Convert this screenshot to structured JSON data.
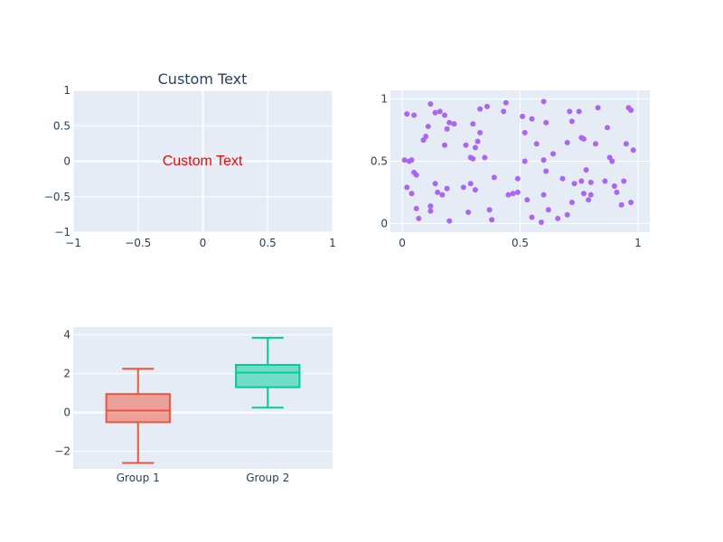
{
  "colors": {
    "plot_bg": "#e5ecf6",
    "grid": "#ffffff",
    "text": "#2a3f5f",
    "annotation": "#ff0000",
    "scatter": "#ab63fa",
    "box1": "#ef553b",
    "box2": "#00cc96"
  },
  "chart_data": [
    {
      "type": "table",
      "panel": "top-left",
      "title": "Custom Text",
      "xlim": [
        -1,
        1
      ],
      "ylim": [
        -1,
        1
      ],
      "x_ticks": [
        "−1",
        "−0.5",
        "0",
        "0.5",
        "1"
      ],
      "y_ticks": [
        "−1",
        "−0.5",
        "0",
        "0.5",
        "1"
      ],
      "annotation": {
        "text": "Custom Text",
        "x": 0,
        "y": 0
      }
    },
    {
      "type": "scatter",
      "panel": "top-right",
      "xlim": [
        -0.05,
        1.05
      ],
      "ylim": [
        -0.07,
        1.07
      ],
      "x_ticks": [
        "0",
        "0.5",
        "1"
      ],
      "y_ticks": [
        "0",
        "0.5",
        "1"
      ],
      "points": [
        [
          0.01,
          0.51
        ],
        [
          0.02,
          0.88
        ],
        [
          0.02,
          0.29
        ],
        [
          0.03,
          0.5
        ],
        [
          0.04,
          0.51
        ],
        [
          0.04,
          0.24
        ],
        [
          0.05,
          0.87
        ],
        [
          0.05,
          0.41
        ],
        [
          0.06,
          0.12
        ],
        [
          0.06,
          0.39
        ],
        [
          0.07,
          0.04
        ],
        [
          0.09,
          0.67
        ],
        [
          0.1,
          0.7
        ],
        [
          0.11,
          0.78
        ],
        [
          0.12,
          0.14
        ],
        [
          0.12,
          0.1
        ],
        [
          0.12,
          0.96
        ],
        [
          0.14,
          0.89
        ],
        [
          0.14,
          0.32
        ],
        [
          0.15,
          0.25
        ],
        [
          0.16,
          0.9
        ],
        [
          0.17,
          0.23
        ],
        [
          0.18,
          0.63
        ],
        [
          0.18,
          0.87
        ],
        [
          0.19,
          0.28
        ],
        [
          0.19,
          0.76
        ],
        [
          0.2,
          0.81
        ],
        [
          0.2,
          0.02
        ],
        [
          0.22,
          0.8
        ],
        [
          0.26,
          0.29
        ],
        [
          0.27,
          0.63
        ],
        [
          0.28,
          0.09
        ],
        [
          0.29,
          0.53
        ],
        [
          0.29,
          0.32
        ],
        [
          0.3,
          0.52
        ],
        [
          0.3,
          0.8
        ],
        [
          0.31,
          0.61
        ],
        [
          0.31,
          0.27
        ],
        [
          0.32,
          0.66
        ],
        [
          0.33,
          0.73
        ],
        [
          0.33,
          0.92
        ],
        [
          0.35,
          0.53
        ],
        [
          0.36,
          0.94
        ],
        [
          0.37,
          0.11
        ],
        [
          0.38,
          0.03
        ],
        [
          0.39,
          0.37
        ],
        [
          0.43,
          0.9
        ],
        [
          0.44,
          0.97
        ],
        [
          0.45,
          0.23
        ],
        [
          0.47,
          0.24
        ],
        [
          0.49,
          0.25
        ],
        [
          0.49,
          0.36
        ],
        [
          0.51,
          0.86
        ],
        [
          0.52,
          0.5
        ],
        [
          0.52,
          0.73
        ],
        [
          0.53,
          0.19
        ],
        [
          0.55,
          0.84
        ],
        [
          0.55,
          0.05
        ],
        [
          0.57,
          0.64
        ],
        [
          0.59,
          0.01
        ],
        [
          0.6,
          0.98
        ],
        [
          0.6,
          0.51
        ],
        [
          0.6,
          0.23
        ],
        [
          0.61,
          0.42
        ],
        [
          0.61,
          0.81
        ],
        [
          0.62,
          0.11
        ],
        [
          0.64,
          0.56
        ],
        [
          0.66,
          0.04
        ],
        [
          0.68,
          0.36
        ],
        [
          0.7,
          0.07
        ],
        [
          0.7,
          0.65
        ],
        [
          0.71,
          0.9
        ],
        [
          0.72,
          0.17
        ],
        [
          0.72,
          0.82
        ],
        [
          0.73,
          0.32
        ],
        [
          0.75,
          0.9
        ],
        [
          0.76,
          0.34
        ],
        [
          0.76,
          0.69
        ],
        [
          0.77,
          0.68
        ],
        [
          0.77,
          0.24
        ],
        [
          0.78,
          0.43
        ],
        [
          0.79,
          0.19
        ],
        [
          0.8,
          0.33
        ],
        [
          0.8,
          0.23
        ],
        [
          0.82,
          0.64
        ],
        [
          0.83,
          0.93
        ],
        [
          0.86,
          0.34
        ],
        [
          0.87,
          0.77
        ],
        [
          0.88,
          0.53
        ],
        [
          0.89,
          0.5
        ],
        [
          0.9,
          0.3
        ],
        [
          0.91,
          0.25
        ],
        [
          0.93,
          0.15
        ],
        [
          0.94,
          0.34
        ],
        [
          0.95,
          0.64
        ],
        [
          0.96,
          0.93
        ],
        [
          0.97,
          0.91
        ],
        [
          0.97,
          0.17
        ],
        [
          0.98,
          0.59
        ]
      ]
    },
    {
      "type": "box",
      "panel": "bottom-left",
      "ylim": [
        -2.9,
        4.4
      ],
      "y_ticks": [
        {
          "label": "−2",
          "value": -2
        },
        {
          "label": "0",
          "value": 0
        },
        {
          "label": "2",
          "value": 2
        },
        {
          "label": "4",
          "value": 4
        }
      ],
      "categories": [
        "Group 1",
        "Group 2"
      ],
      "boxes": [
        {
          "category": "Group 1",
          "min": -2.6,
          "q1": -0.5,
          "median": 0.1,
          "q3": 0.95,
          "max": 2.25,
          "color": "#ef553b",
          "fill": "rgba(239,85,59,0.5)"
        },
        {
          "category": "Group 2",
          "min": 0.25,
          "q1": 1.3,
          "median": 2.05,
          "q3": 2.45,
          "max": 3.85,
          "color": "#00cc96",
          "fill": "rgba(0,204,150,0.5)"
        }
      ]
    }
  ]
}
